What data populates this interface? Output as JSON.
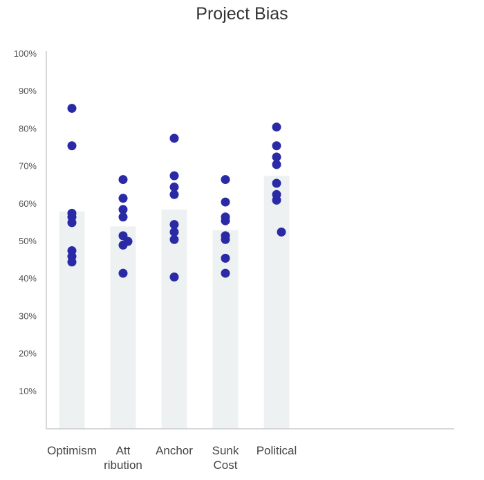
{
  "chart_data": {
    "type": "bar",
    "title": "Project Bias",
    "xlabel": "",
    "ylabel": "",
    "ylim": [
      0,
      100
    ],
    "yticks": [
      "10%",
      "20%",
      "30%",
      "40%",
      "50%",
      "60%",
      "70%",
      "80%",
      "90%",
      "100%"
    ],
    "ytick_values": [
      10,
      20,
      30,
      40,
      50,
      60,
      70,
      80,
      90,
      100
    ],
    "categories": [
      [
        "Optimism"
      ],
      [
        "Att",
        "ribution"
      ],
      [
        "Anchor"
      ],
      [
        "Sunk",
        "Cost"
      ],
      [
        "Political"
      ]
    ],
    "values": [
      58,
      54,
      58.5,
      53,
      67.5
    ],
    "points": [
      [
        85.5,
        75.5,
        57.5,
        56.5,
        55,
        47.5,
        46,
        44.5
      ],
      [
        66.5,
        61.5,
        58.5,
        56.5,
        51.5,
        49,
        41.5,
        50
      ],
      [
        77.5,
        67.5,
        64.5,
        62.5,
        54.5,
        52.5,
        50.5,
        40.5
      ],
      [
        66.5,
        60.5,
        56.5,
        55.5,
        51.5,
        50.5,
        45.5,
        41.5
      ],
      [
        80.5,
        75.5,
        72.5,
        70.5,
        65.5,
        62.5,
        61,
        52.5
      ]
    ],
    "grid": false,
    "colors": {
      "bar": "#eef1f2",
      "point": "#2a2aa6",
      "axis": "#cccccc"
    }
  }
}
